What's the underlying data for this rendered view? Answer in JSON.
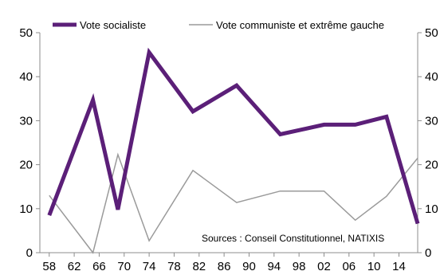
{
  "chart_data": {
    "type": "line",
    "x": [
      1958,
      1965,
      1969,
      1974,
      1981,
      1988,
      1995,
      2002,
      2007,
      2012,
      2017
    ],
    "x_tick_labels": [
      "58",
      "62",
      "66",
      "70",
      "74",
      "78",
      "82",
      "86",
      "90",
      "94",
      "98",
      "02",
      "06",
      "10",
      "14"
    ],
    "x_tick_years": [
      1958,
      1962,
      1966,
      1970,
      1974,
      1978,
      1982,
      1986,
      1990,
      1994,
      1998,
      2002,
      2006,
      2010,
      2014
    ],
    "xlim": [
      1956.5,
      2017
    ],
    "ylim": [
      0,
      50
    ],
    "y_ticks": [
      0,
      10,
      20,
      30,
      40,
      50
    ],
    "y2_ticks": [
      0,
      10,
      20,
      30,
      40,
      50
    ],
    "series": [
      {
        "name": "Vote socialiste",
        "color": "#5b1f78",
        "values": [
          8.5,
          34.7,
          9.8,
          45.5,
          32.1,
          38.0,
          26.9,
          29.1,
          29.1,
          30.9,
          6.6
        ]
      },
      {
        "name": "Vote communiste et extrême gauche",
        "color": "#9a9a9a",
        "values": [
          13.0,
          0.0,
          22.3,
          2.7,
          18.7,
          11.4,
          14.0,
          14.0,
          7.4,
          12.8,
          21.5
        ]
      }
    ],
    "legend_position": "top",
    "annotation": "Sources : Conseil  Constitutionnel,  NATIXIS",
    "grid": false
  }
}
